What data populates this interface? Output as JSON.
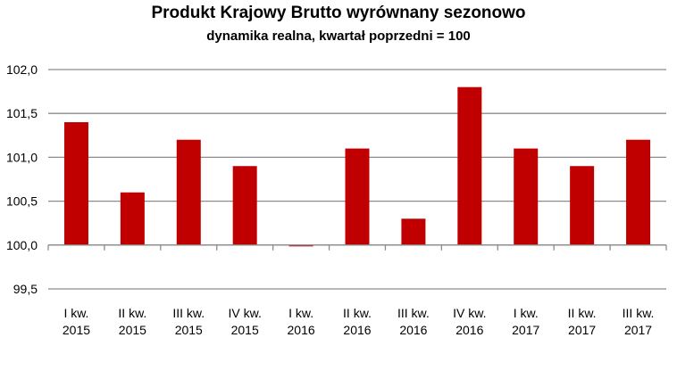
{
  "chart_data": {
    "type": "bar",
    "title": "Produkt Krajowy Brutto wyrównany sezonowo",
    "subtitle": "dynamika realna, kwartał poprzedni = 100",
    "xlabel": "",
    "ylabel": "",
    "categories": [
      [
        "I kw.",
        "2015"
      ],
      [
        "II kw.",
        "2015"
      ],
      [
        "III kw.",
        "2015"
      ],
      [
        "IV kw.",
        "2015"
      ],
      [
        "I kw.",
        "2016"
      ],
      [
        "II kw.",
        "2016"
      ],
      [
        "III kw.",
        "2016"
      ],
      [
        "IV kw.",
        "2016"
      ],
      [
        "I kw.",
        "2017"
      ],
      [
        "II kw.",
        "2017"
      ],
      [
        "III kw.",
        "2017"
      ]
    ],
    "values": [
      101.4,
      100.6,
      101.2,
      100.9,
      100.0,
      101.1,
      100.3,
      101.8,
      101.1,
      100.9,
      101.2
    ],
    "baseline": 100.0,
    "ylim": [
      99.5,
      102.0
    ],
    "yticks": [
      "102,0",
      "101,5",
      "101,0",
      "100,5",
      "100,0",
      "99,5"
    ],
    "ytick_values": [
      102.0,
      101.5,
      101.0,
      100.5,
      100.0,
      99.5
    ],
    "grid": true,
    "legend": null,
    "bar_color": "#C00000",
    "grid_color": "#8C8C8C"
  }
}
